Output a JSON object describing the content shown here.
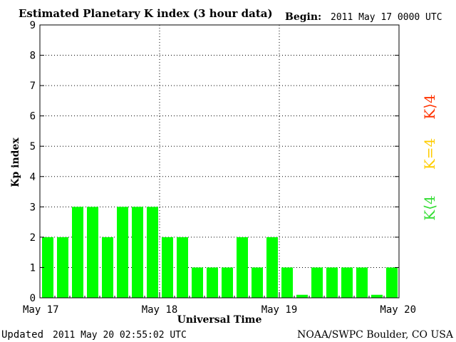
{
  "header": {
    "title": "Estimated Planetary K index (3 hour data)",
    "begin_label": "Begin:",
    "begin_value": "2011 May 17 0000 UTC"
  },
  "footer": {
    "updated_label": "Updated",
    "updated_value": "2011 May 20 02:55:02 UTC",
    "source": "NOAA/SWPC Boulder, CO USA"
  },
  "legend": {
    "high": "K⟩4",
    "equal": "K=4",
    "low": "K⟨4"
  },
  "colors": {
    "bar": "#00ff00",
    "high": "#ff3300",
    "equal": "#ffcc00",
    "low": "#33dd33",
    "grid": "#000000"
  },
  "chart_data": {
    "type": "bar",
    "xlabel": "Universal Time",
    "ylabel": "Kp index",
    "ylim": [
      0,
      9
    ],
    "yticks": [
      "0",
      "1",
      "2",
      "3",
      "4",
      "5",
      "6",
      "7",
      "8",
      "9"
    ],
    "xticks": [
      "May 17",
      "May 18",
      "May 19",
      "May 20"
    ],
    "grid": true,
    "values": [
      2,
      2,
      3,
      3,
      2,
      3,
      3,
      3,
      2,
      2,
      1,
      1,
      1,
      2,
      1,
      2,
      1,
      0.1,
      1,
      1,
      1,
      1,
      0.1,
      1
    ]
  }
}
